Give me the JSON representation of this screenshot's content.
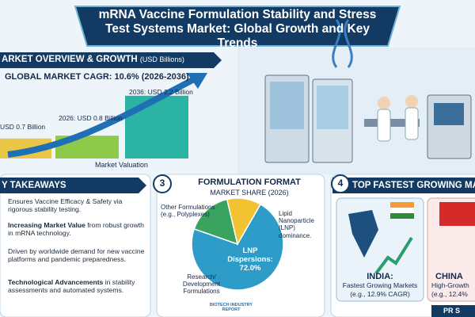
{
  "title": "mRNA Vaccine Formulation Stability and Stress Test Systems Market: Global Growth and Key Trends",
  "overview": {
    "heading": "ARKET OVERVIEW & GROWTH",
    "unit": "(USD Billions)",
    "cagr": "GLOBAL MARKET CAGR: 10.6% (2026-2036)",
    "bars": [
      {
        "label": "USD 0.7 Billion",
        "value": 0.7,
        "color": "#e9c645"
      },
      {
        "label": "2026: USD 0.8 Billion",
        "value": 0.8,
        "color": "#8fc94a"
      },
      {
        "label": "2036: USD 2.2 Billion",
        "value": 2.2,
        "color": "#2bb3a3"
      }
    ],
    "axis_label": "Market Valuation"
  },
  "takeaways": {
    "heading": "Y TAKEAWAYS",
    "items": [
      {
        "text": "Ensures Vaccine Efficacy & Safety via rigorous stability testing."
      },
      {
        "bold": "Increasing Market Value",
        "text": " from robust growth in mRNA technology."
      },
      {
        "text": "Driven by worldwide demand for new vaccine platforms and pandemic preparedness."
      },
      {
        "bold": "Technological Advancements",
        "text": " in stability assessments and automated systems."
      }
    ]
  },
  "formulation": {
    "number": "3",
    "heading": "FORMULATION FORMAT",
    "subheading": "MARKET SHARE (2026)",
    "slices": [
      {
        "label": "LNP Dispersions: 72.0%",
        "value": 72,
        "color": "#2e9cc9"
      },
      {
        "label": "Research/ Development Formulations",
        "value": 16,
        "color": "#3aa35f"
      },
      {
        "label": "Other Formulations (e.g., Polyplexes)",
        "value": 12,
        "color": "#f2c230"
      }
    ],
    "callout": "Lipid Nanoparticle (LNP) dominance."
  },
  "logo": "BIOTECH INDUSTRY REPORT",
  "growth": {
    "number": "4",
    "heading": "TOP FASTEST GROWING MA",
    "cards": [
      {
        "name": "INDIA:",
        "desc": "Fastest Growing Markets",
        "note": "(e.g., 12.9% CAGR)"
      },
      {
        "name": "CHINA",
        "desc": "High-Growth",
        "note": "(e.g., 12.4%"
      }
    ]
  },
  "footer": "PR S"
}
